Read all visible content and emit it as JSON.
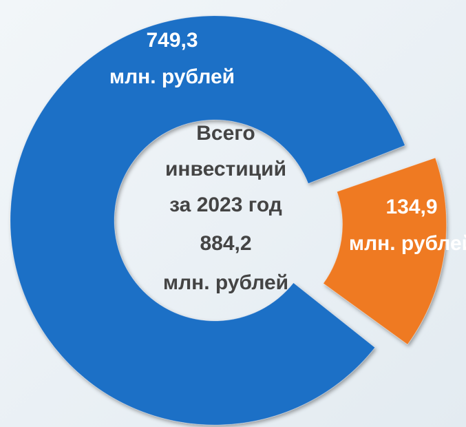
{
  "chart_data": {
    "type": "donut",
    "categories": [
      null,
      null
    ],
    "values": [
      749.3,
      134.9
    ],
    "value_labels": [
      "749,3",
      "134,9"
    ],
    "colors": [
      "#1f6fc6",
      "#ef7a22"
    ],
    "unit": "млн. рублей",
    "center_lines": [
      "Всего",
      "инвестиций",
      "за 2023 год"
    ],
    "center_total": "884,2",
    "center_unit": "млн. рублей"
  }
}
